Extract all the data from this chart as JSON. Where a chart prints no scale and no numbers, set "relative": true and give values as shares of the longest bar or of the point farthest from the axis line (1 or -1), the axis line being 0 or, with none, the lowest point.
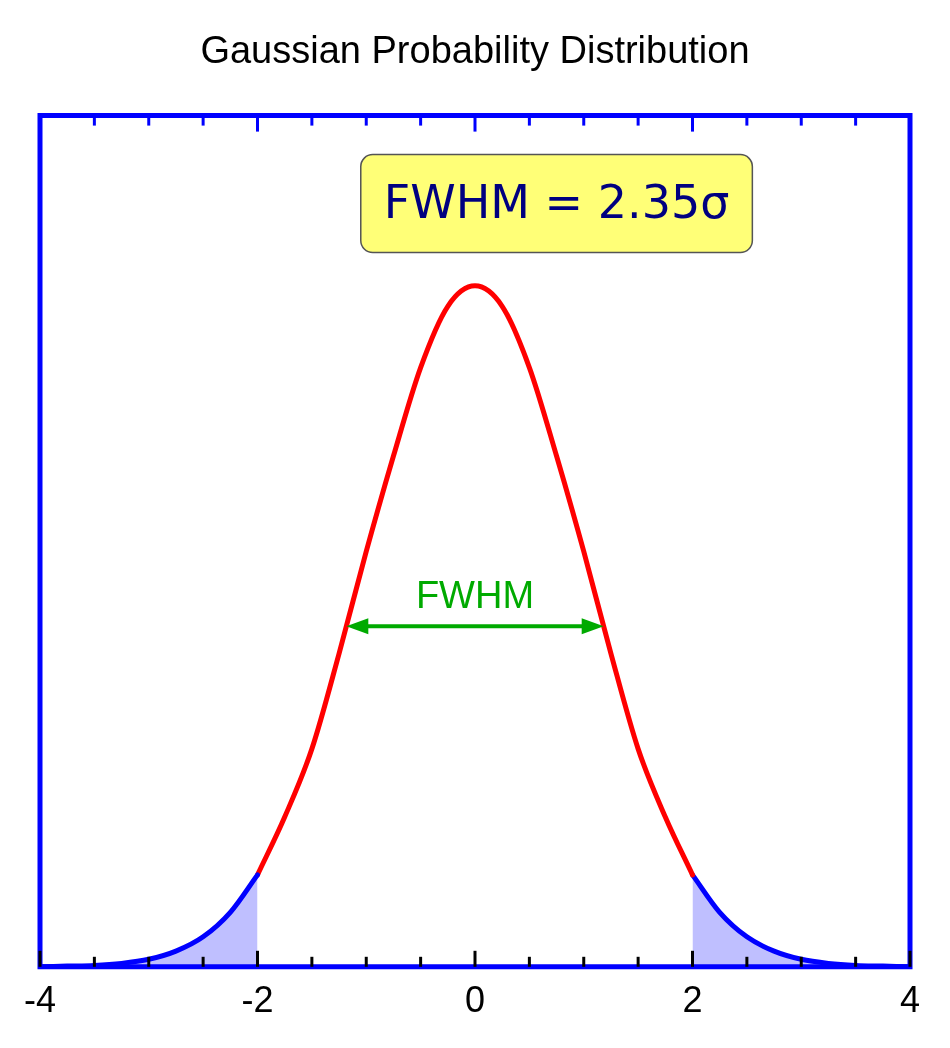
{
  "chart_data": {
    "type": "line",
    "title": "Gaussian Probability Distribution",
    "relative": true,
    "xlim": [
      -4,
      4
    ],
    "xticks": [
      -4,
      {
        "value": -3.5,
        "label": null
      },
      {
        "value": -3,
        "label": null
      },
      {
        "value": -2.5,
        "label": null
      },
      -2,
      {
        "value": -1.5,
        "label": null
      },
      {
        "value": -1,
        "label": null
      },
      {
        "value": -0.5,
        "label": null
      },
      0,
      {
        "value": 0.5,
        "label": null
      },
      {
        "value": 1,
        "label": null
      },
      {
        "value": 1.5,
        "label": null
      },
      2,
      {
        "value": 2.5,
        "label": null
      },
      {
        "value": 3,
        "label": null
      },
      {
        "value": 3.5,
        "label": null
      },
      4
    ],
    "tick_labels": "x",
    "grid": false,
    "legend": false,
    "marker": "none",
    "line_style": "solid",
    "series": [
      {
        "type": "area",
        "color": "#0000ff",
        "x": [
          -4,
          -3.75,
          -3.5,
          -3.25,
          -3,
          -2.75,
          -2.5,
          -2.25,
          -2
        ],
        "values": [
          0,
          0.001,
          0.002,
          0.005,
          0.011,
          0.023,
          0.044,
          0.08,
          0.135
        ]
      },
      {
        "type": "line",
        "color": "#ff0000",
        "x": [
          -2,
          -1.75,
          -1.5,
          -1.25,
          -1,
          -0.75,
          -0.5,
          -0.25,
          0,
          0.25,
          0.5,
          0.75,
          1,
          1.25,
          1.5,
          1.75,
          2
        ],
        "values": [
          0.135,
          0.22,
          0.32,
          0.46,
          0.61,
          0.75,
          0.88,
          0.97,
          1,
          0.97,
          0.88,
          0.75,
          0.61,
          0.46,
          0.32,
          0.22,
          0.135
        ]
      },
      {
        "type": "area",
        "color": "#0000ff",
        "x": [
          2,
          2.25,
          2.5,
          2.75,
          3,
          3.25,
          3.5,
          3.75,
          4
        ],
        "values": [
          0.135,
          0.08,
          0.044,
          0.023,
          0.011,
          0.005,
          0.002,
          0.001,
          0
        ]
      }
    ],
    "annotations": [
      "FWHM = 2.35σ",
      "FWHM"
    ]
  }
}
